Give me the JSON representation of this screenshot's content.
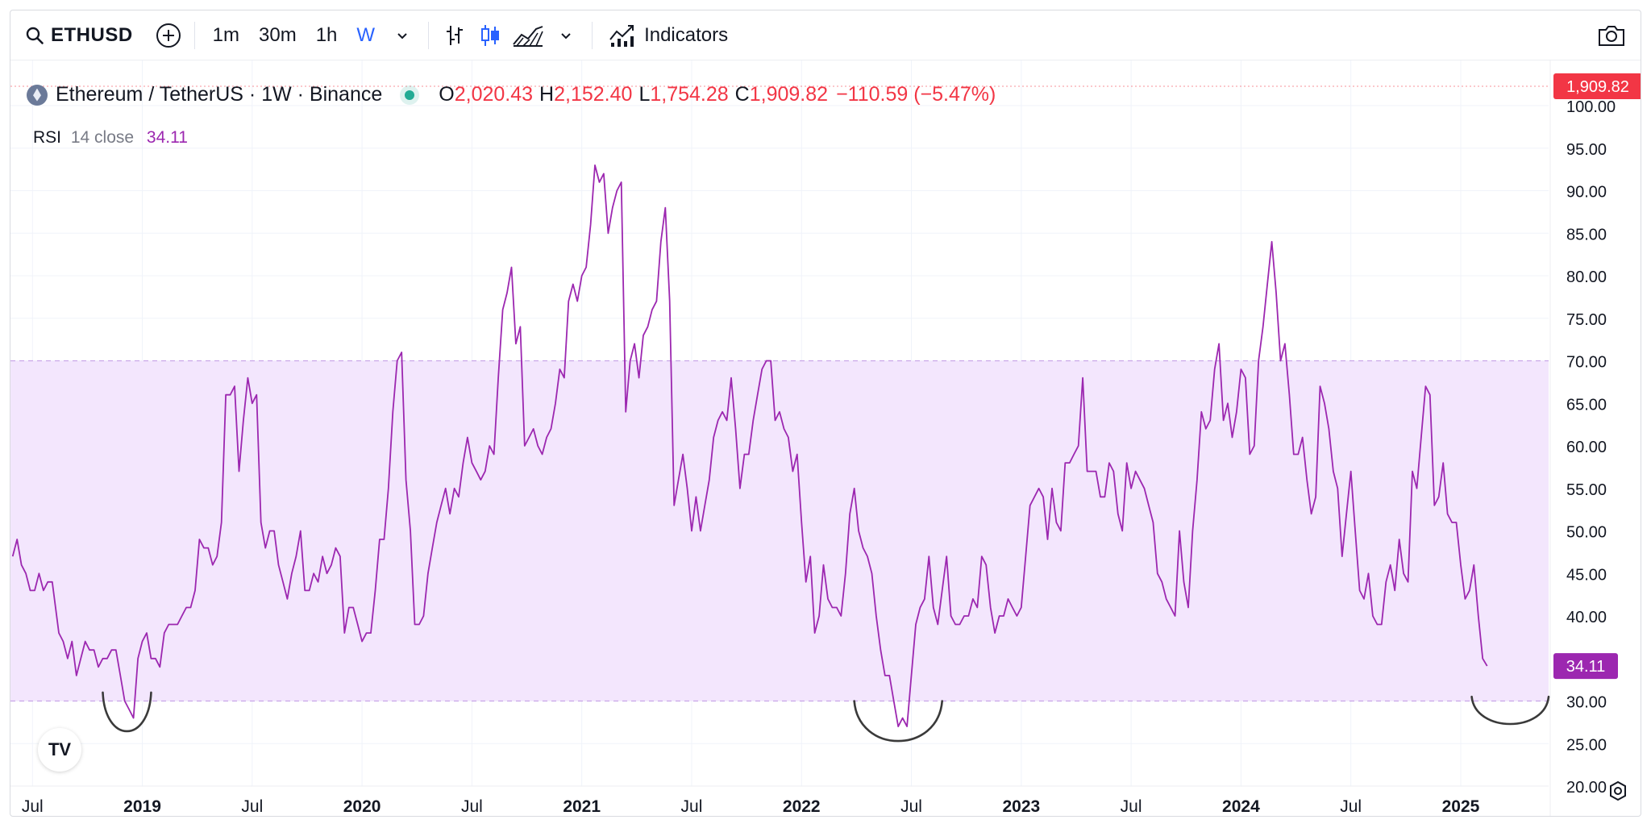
{
  "toolbar": {
    "symbol": "ETHUSD",
    "intervals": [
      "1m",
      "30m",
      "1h",
      "W"
    ],
    "active_interval": "W",
    "indicators_label": "Indicators"
  },
  "legend": {
    "name": "Ethereum / TetherUS · 1W · Binance",
    "o_key": "O",
    "o_val": "2,020.43",
    "h_key": "H",
    "h_val": "2,152.40",
    "l_key": "L",
    "l_val": "1,754.28",
    "c_key": "C",
    "c_val": "1,909.82",
    "change": "−110.59 (−5.47%)"
  },
  "price_badge": "1,909.82",
  "rsi": {
    "title": "RSI",
    "params": "14 close",
    "value": "34.11"
  },
  "logo_text": "TV",
  "colors": {
    "rsi_line": "#9c27b0",
    "band_fill": "#f3e6fd",
    "band_line": "#c9a6e8",
    "badge_red": "#f23645",
    "badge_purple": "#9c27b0"
  },
  "chart_data": {
    "type": "line",
    "title": "",
    "series": [
      {
        "name": "RSI 14 close",
        "color": "#9c27b0"
      }
    ],
    "ylim": [
      20,
      100
    ],
    "yticks": [
      "100.00",
      "95.00",
      "90.00",
      "85.00",
      "80.00",
      "75.00",
      "70.00",
      "65.00",
      "60.00",
      "55.00",
      "50.00",
      "45.00",
      "40.00",
      "35.00",
      "30.00",
      "25.00",
      "20.00"
    ],
    "band": [
      30,
      70
    ],
    "last_value": 34.11,
    "xlim": [
      2018.4,
      2025.4
    ],
    "xticks": [
      {
        "label": "Jul",
        "x": 2018.5,
        "bold": false
      },
      {
        "label": "2019",
        "x": 2019.0,
        "bold": true
      },
      {
        "label": "Jul",
        "x": 2019.5,
        "bold": false
      },
      {
        "label": "2020",
        "x": 2020.0,
        "bold": true
      },
      {
        "label": "Jul",
        "x": 2020.5,
        "bold": false
      },
      {
        "label": "2021",
        "x": 2021.0,
        "bold": true
      },
      {
        "label": "Jul",
        "x": 2021.5,
        "bold": false
      },
      {
        "label": "2022",
        "x": 2022.0,
        "bold": true
      },
      {
        "label": "Jul",
        "x": 2022.5,
        "bold": false
      },
      {
        "label": "2023",
        "x": 2023.0,
        "bold": true
      },
      {
        "label": "Jul",
        "x": 2023.5,
        "bold": false
      },
      {
        "label": "2024",
        "x": 2024.0,
        "bold": true
      },
      {
        "label": "Jul",
        "x": 2024.5,
        "bold": false
      },
      {
        "label": "2025",
        "x": 2025.0,
        "bold": true
      }
    ],
    "points": [
      [
        2018.41,
        47
      ],
      [
        2018.43,
        49
      ],
      [
        2018.45,
        46
      ],
      [
        2018.47,
        45
      ],
      [
        2018.49,
        43
      ],
      [
        2018.51,
        43
      ],
      [
        2018.53,
        45
      ],
      [
        2018.55,
        43
      ],
      [
        2018.57,
        44
      ],
      [
        2018.59,
        44
      ],
      [
        2018.62,
        38
      ],
      [
        2018.64,
        37
      ],
      [
        2018.66,
        35
      ],
      [
        2018.68,
        37
      ],
      [
        2018.7,
        33
      ],
      [
        2018.72,
        35
      ],
      [
        2018.74,
        37
      ],
      [
        2018.76,
        36
      ],
      [
        2018.78,
        36
      ],
      [
        2018.8,
        34
      ],
      [
        2018.82,
        35
      ],
      [
        2018.84,
        35
      ],
      [
        2018.86,
        36
      ],
      [
        2018.88,
        36
      ],
      [
        2018.9,
        33
      ],
      [
        2018.92,
        30
      ],
      [
        2018.94,
        29
      ],
      [
        2018.96,
        28
      ],
      [
        2018.98,
        35
      ],
      [
        2019.0,
        37
      ],
      [
        2019.02,
        38
      ],
      [
        2019.04,
        35
      ],
      [
        2019.06,
        35
      ],
      [
        2019.08,
        34
      ],
      [
        2019.1,
        38
      ],
      [
        2019.12,
        39
      ],
      [
        2019.14,
        39
      ],
      [
        2019.16,
        39
      ],
      [
        2019.18,
        40
      ],
      [
        2019.2,
        41
      ],
      [
        2019.22,
        41
      ],
      [
        2019.24,
        43
      ],
      [
        2019.26,
        49
      ],
      [
        2019.28,
        48
      ],
      [
        2019.3,
        48
      ],
      [
        2019.32,
        46
      ],
      [
        2019.34,
        47
      ],
      [
        2019.36,
        51
      ],
      [
        2019.38,
        66
      ],
      [
        2019.4,
        66
      ],
      [
        2019.42,
        67
      ],
      [
        2019.44,
        57
      ],
      [
        2019.46,
        63
      ],
      [
        2019.48,
        68
      ],
      [
        2019.5,
        65
      ],
      [
        2019.52,
        66
      ],
      [
        2019.54,
        51
      ],
      [
        2019.56,
        48
      ],
      [
        2019.58,
        50
      ],
      [
        2019.6,
        50
      ],
      [
        2019.62,
        46
      ],
      [
        2019.64,
        44
      ],
      [
        2019.66,
        42
      ],
      [
        2019.68,
        45
      ],
      [
        2019.7,
        47
      ],
      [
        2019.72,
        50
      ],
      [
        2019.74,
        43
      ],
      [
        2019.76,
        43
      ],
      [
        2019.78,
        45
      ],
      [
        2019.8,
        44
      ],
      [
        2019.82,
        47
      ],
      [
        2019.84,
        45
      ],
      [
        2019.86,
        46
      ],
      [
        2019.88,
        48
      ],
      [
        2019.9,
        47
      ],
      [
        2019.92,
        38
      ],
      [
        2019.94,
        41
      ],
      [
        2019.96,
        41
      ],
      [
        2019.98,
        39
      ],
      [
        2020.0,
        37
      ],
      [
        2020.02,
        38
      ],
      [
        2020.04,
        38
      ],
      [
        2020.06,
        43
      ],
      [
        2020.08,
        49
      ],
      [
        2020.1,
        49
      ],
      [
        2020.12,
        55
      ],
      [
        2020.14,
        64
      ],
      [
        2020.16,
        70
      ],
      [
        2020.18,
        71
      ],
      [
        2020.2,
        56
      ],
      [
        2020.22,
        50
      ],
      [
        2020.24,
        39
      ],
      [
        2020.26,
        39
      ],
      [
        2020.28,
        40
      ],
      [
        2020.3,
        45
      ],
      [
        2020.32,
        48
      ],
      [
        2020.34,
        51
      ],
      [
        2020.36,
        53
      ],
      [
        2020.38,
        55
      ],
      [
        2020.4,
        52
      ],
      [
        2020.42,
        55
      ],
      [
        2020.44,
        54
      ],
      [
        2020.46,
        58
      ],
      [
        2020.48,
        61
      ],
      [
        2020.5,
        58
      ],
      [
        2020.52,
        57
      ],
      [
        2020.54,
        56
      ],
      [
        2020.56,
        57
      ],
      [
        2020.58,
        60
      ],
      [
        2020.6,
        59
      ],
      [
        2020.62,
        68
      ],
      [
        2020.64,
        76
      ],
      [
        2020.66,
        78
      ],
      [
        2020.68,
        81
      ],
      [
        2020.7,
        72
      ],
      [
        2020.72,
        74
      ],
      [
        2020.74,
        60
      ],
      [
        2020.76,
        61
      ],
      [
        2020.78,
        62
      ],
      [
        2020.8,
        60
      ],
      [
        2020.82,
        59
      ],
      [
        2020.84,
        61
      ],
      [
        2020.86,
        62
      ],
      [
        2020.88,
        65
      ],
      [
        2020.9,
        69
      ],
      [
        2020.92,
        68
      ],
      [
        2020.94,
        77
      ],
      [
        2020.96,
        79
      ],
      [
        2020.98,
        77
      ],
      [
        2021.0,
        80
      ],
      [
        2021.02,
        81
      ],
      [
        2021.04,
        86
      ],
      [
        2021.06,
        93
      ],
      [
        2021.08,
        91
      ],
      [
        2021.1,
        92
      ],
      [
        2021.12,
        85
      ],
      [
        2021.14,
        88
      ],
      [
        2021.16,
        90
      ],
      [
        2021.18,
        91
      ],
      [
        2021.2,
        64
      ],
      [
        2021.22,
        70
      ],
      [
        2021.24,
        72
      ],
      [
        2021.26,
        68
      ],
      [
        2021.28,
        73
      ],
      [
        2021.3,
        74
      ],
      [
        2021.32,
        76
      ],
      [
        2021.34,
        77
      ],
      [
        2021.36,
        84
      ],
      [
        2021.38,
        88
      ],
      [
        2021.4,
        77
      ],
      [
        2021.42,
        53
      ],
      [
        2021.44,
        56
      ],
      [
        2021.46,
        59
      ],
      [
        2021.48,
        55
      ],
      [
        2021.5,
        50
      ],
      [
        2021.52,
        54
      ],
      [
        2021.54,
        50
      ],
      [
        2021.56,
        53
      ],
      [
        2021.58,
        56
      ],
      [
        2021.6,
        61
      ],
      [
        2021.62,
        63
      ],
      [
        2021.64,
        64
      ],
      [
        2021.66,
        63
      ],
      [
        2021.68,
        68
      ],
      [
        2021.7,
        62
      ],
      [
        2021.72,
        55
      ],
      [
        2021.74,
        59
      ],
      [
        2021.76,
        59
      ],
      [
        2021.78,
        63
      ],
      [
        2021.8,
        66
      ],
      [
        2021.82,
        69
      ],
      [
        2021.84,
        70
      ],
      [
        2021.86,
        70
      ],
      [
        2021.88,
        63
      ],
      [
        2021.9,
        64
      ],
      [
        2021.92,
        62
      ],
      [
        2021.94,
        61
      ],
      [
        2021.96,
        57
      ],
      [
        2021.98,
        59
      ],
      [
        2022.0,
        51
      ],
      [
        2022.02,
        44
      ],
      [
        2022.04,
        47
      ],
      [
        2022.06,
        38
      ],
      [
        2022.08,
        40
      ],
      [
        2022.1,
        46
      ],
      [
        2022.12,
        42
      ],
      [
        2022.14,
        41
      ],
      [
        2022.16,
        41
      ],
      [
        2022.18,
        40
      ],
      [
        2022.2,
        45
      ],
      [
        2022.22,
        52
      ],
      [
        2022.24,
        55
      ],
      [
        2022.26,
        50
      ],
      [
        2022.28,
        48
      ],
      [
        2022.3,
        47
      ],
      [
        2022.32,
        45
      ],
      [
        2022.34,
        40
      ],
      [
        2022.36,
        36
      ],
      [
        2022.38,
        33
      ],
      [
        2022.4,
        33
      ],
      [
        2022.42,
        30
      ],
      [
        2022.44,
        27
      ],
      [
        2022.46,
        28
      ],
      [
        2022.48,
        27
      ],
      [
        2022.5,
        33
      ],
      [
        2022.52,
        39
      ],
      [
        2022.54,
        41
      ],
      [
        2022.56,
        42
      ],
      [
        2022.58,
        47
      ],
      [
        2022.6,
        41
      ],
      [
        2022.62,
        39
      ],
      [
        2022.64,
        43
      ],
      [
        2022.66,
        47
      ],
      [
        2022.68,
        40
      ],
      [
        2022.7,
        39
      ],
      [
        2022.72,
        39
      ],
      [
        2022.74,
        40
      ],
      [
        2022.76,
        40
      ],
      [
        2022.78,
        42
      ],
      [
        2022.8,
        41
      ],
      [
        2022.82,
        47
      ],
      [
        2022.84,
        46
      ],
      [
        2022.86,
        41
      ],
      [
        2022.88,
        38
      ],
      [
        2022.9,
        40
      ],
      [
        2022.92,
        40
      ],
      [
        2022.94,
        42
      ],
      [
        2022.96,
        41
      ],
      [
        2022.98,
        40
      ],
      [
        2023.0,
        41
      ],
      [
        2023.02,
        47
      ],
      [
        2023.04,
        53
      ],
      [
        2023.06,
        54
      ],
      [
        2023.08,
        55
      ],
      [
        2023.1,
        54
      ],
      [
        2023.12,
        49
      ],
      [
        2023.14,
        55
      ],
      [
        2023.16,
        51
      ],
      [
        2023.18,
        50
      ],
      [
        2023.2,
        58
      ],
      [
        2023.22,
        58
      ],
      [
        2023.24,
        59
      ],
      [
        2023.26,
        60
      ],
      [
        2023.28,
        68
      ],
      [
        2023.3,
        57
      ],
      [
        2023.32,
        57
      ],
      [
        2023.34,
        57
      ],
      [
        2023.36,
        54
      ],
      [
        2023.38,
        54
      ],
      [
        2023.4,
        58
      ],
      [
        2023.42,
        57
      ],
      [
        2023.44,
        52
      ],
      [
        2023.46,
        50
      ],
      [
        2023.48,
        58
      ],
      [
        2023.5,
        55
      ],
      [
        2023.52,
        57
      ],
      [
        2023.54,
        56
      ],
      [
        2023.56,
        55
      ],
      [
        2023.58,
        53
      ],
      [
        2023.6,
        51
      ],
      [
        2023.62,
        45
      ],
      [
        2023.64,
        44
      ],
      [
        2023.66,
        42
      ],
      [
        2023.68,
        41
      ],
      [
        2023.7,
        40
      ],
      [
        2023.72,
        50
      ],
      [
        2023.74,
        44
      ],
      [
        2023.76,
        41
      ],
      [
        2023.78,
        50
      ],
      [
        2023.8,
        56
      ],
      [
        2023.82,
        64
      ],
      [
        2023.84,
        62
      ],
      [
        2023.86,
        63
      ],
      [
        2023.88,
        69
      ],
      [
        2023.9,
        72
      ],
      [
        2023.92,
        63
      ],
      [
        2023.94,
        65
      ],
      [
        2023.96,
        61
      ],
      [
        2023.98,
        64
      ],
      [
        2024.0,
        69
      ],
      [
        2024.02,
        68
      ],
      [
        2024.04,
        59
      ],
      [
        2024.06,
        60
      ],
      [
        2024.08,
        70
      ],
      [
        2024.1,
        74
      ],
      [
        2024.12,
        79
      ],
      [
        2024.14,
        84
      ],
      [
        2024.16,
        78
      ],
      [
        2024.18,
        70
      ],
      [
        2024.2,
        72
      ],
      [
        2024.22,
        66
      ],
      [
        2024.24,
        59
      ],
      [
        2024.26,
        59
      ],
      [
        2024.28,
        61
      ],
      [
        2024.3,
        56
      ],
      [
        2024.32,
        52
      ],
      [
        2024.34,
        54
      ],
      [
        2024.36,
        67
      ],
      [
        2024.38,
        65
      ],
      [
        2024.4,
        62
      ],
      [
        2024.42,
        57
      ],
      [
        2024.44,
        55
      ],
      [
        2024.46,
        47
      ],
      [
        2024.48,
        52
      ],
      [
        2024.5,
        57
      ],
      [
        2024.52,
        50
      ],
      [
        2024.54,
        43
      ],
      [
        2024.56,
        42
      ],
      [
        2024.58,
        45
      ],
      [
        2024.6,
        40
      ],
      [
        2024.62,
        39
      ],
      [
        2024.64,
        39
      ],
      [
        2024.66,
        44
      ],
      [
        2024.68,
        46
      ],
      [
        2024.7,
        43
      ],
      [
        2024.72,
        49
      ],
      [
        2024.74,
        45
      ],
      [
        2024.76,
        44
      ],
      [
        2024.78,
        57
      ],
      [
        2024.8,
        55
      ],
      [
        2024.82,
        61
      ],
      [
        2024.84,
        67
      ],
      [
        2024.86,
        66
      ],
      [
        2024.88,
        53
      ],
      [
        2024.9,
        54
      ],
      [
        2024.92,
        58
      ],
      [
        2024.94,
        52
      ],
      [
        2024.96,
        51
      ],
      [
        2024.98,
        51
      ],
      [
        2025.0,
        46
      ],
      [
        2025.02,
        42
      ],
      [
        2025.04,
        43
      ],
      [
        2025.06,
        46
      ],
      [
        2025.08,
        40
      ],
      [
        2025.1,
        35
      ],
      [
        2025.12,
        34.11
      ]
    ],
    "annotations": [
      {
        "type": "arc",
        "x1": 2018.82,
        "x2": 2019.04,
        "y_top": 31,
        "y_bottom": 25.5
      },
      {
        "type": "arc",
        "x1": 2022.24,
        "x2": 2022.64,
        "y_top": 30,
        "y_bottom": 24.3
      },
      {
        "type": "arc",
        "x1": 2025.05,
        "x2": 2025.4,
        "y_top": 30.5,
        "y_bottom": 26.8
      }
    ]
  }
}
